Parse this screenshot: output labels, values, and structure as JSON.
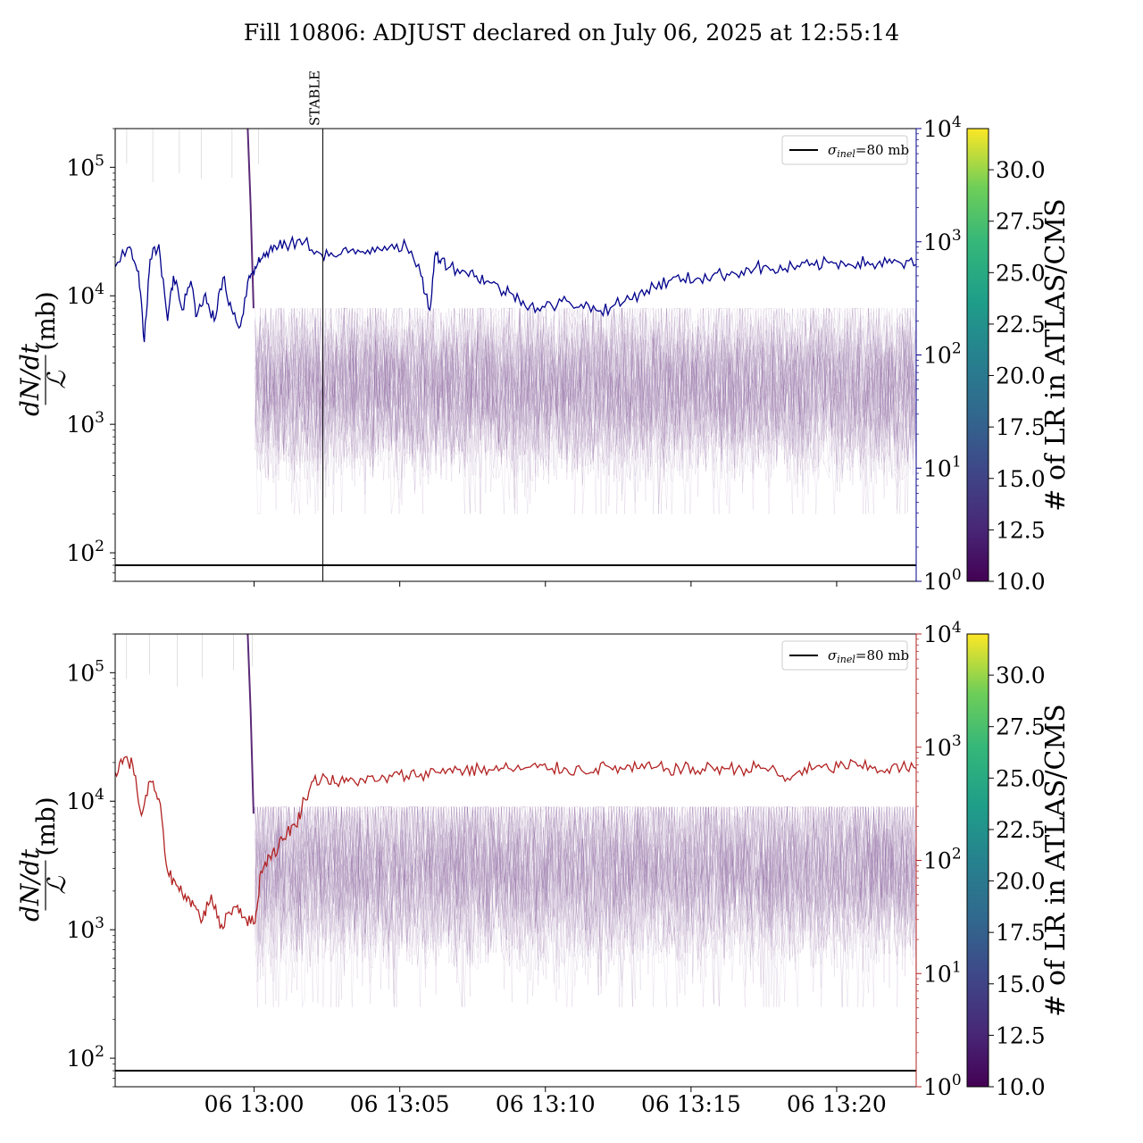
{
  "title": "Fill 10806: ADJUST declared on July 06, 2025 at 12:55:14",
  "chart_data": [
    {
      "type": "line",
      "panel": "top",
      "x_range": [
        "06 12:55:14",
        "06 13:22:45"
      ],
      "xticks": [
        "06 13:00",
        "06 13:05",
        "06 13:10",
        "06 13:15",
        "06 13:20"
      ],
      "xtick_minutes": [
        4.77,
        9.77,
        14.77,
        19.77,
        24.77
      ],
      "x_end_minutes": 27.5,
      "ylabel_num": "dN/dt",
      "ylabel_den": "ℒ",
      "ylabel_unit": "(mb)",
      "y_scale": "log",
      "ylim": [
        60,
        200000
      ],
      "yticks": [
        "10^2",
        "10^3",
        "10^4",
        "10^5"
      ],
      "yticks_values": [
        100,
        1000,
        10000,
        100000
      ],
      "y2_scale": "log",
      "y2lim": [
        1,
        10000
      ],
      "y2ticks": [
        "10^0",
        "10^1",
        "10^2",
        "10^3",
        "10^4"
      ],
      "y2_color": "#00008b",
      "hline_value": 80,
      "legend": {
        "label": "σinel=80 mb",
        "sym": "σ",
        "sub": "inel",
        "rest": "=80 mb",
        "placement": "top-right"
      },
      "vline": {
        "label": "STABLE",
        "x_minutes": 7.13
      },
      "series": [
        {
          "axis": "right",
          "color": "#00008b",
          "x_minutes": [
            0,
            0.5,
            0.8,
            1.0,
            1.2,
            1.5,
            1.8,
            2.0,
            2.3,
            2.6,
            2.8,
            3.1,
            3.4,
            3.7,
            4.0,
            4.3,
            4.6,
            4.8,
            5.0,
            5.3,
            5.6,
            6.0,
            6.5,
            7.0,
            7.5,
            8.0,
            8.5,
            9.0,
            9.5,
            10.0,
            10.5,
            10.8,
            11.0,
            11.2,
            11.5,
            12.0,
            12.4,
            12.8,
            13.2,
            13.6,
            14.0,
            14.5,
            15.0,
            15.5,
            16.0,
            16.5,
            17.0,
            17.5,
            18.0,
            18.5,
            19.0,
            19.5,
            20.0,
            20.5,
            21.0,
            21.5,
            22.0,
            22.5,
            23.0,
            23.5,
            24.0,
            24.5,
            25.0,
            25.5,
            26.0,
            26.5,
            27.0,
            27.5
          ],
          "values": [
            600,
            900,
            550,
            130,
            700,
            950,
            200,
            500,
            250,
            450,
            220,
            350,
            200,
            480,
            250,
            180,
            500,
            600,
            700,
            850,
            900,
            950,
            1000,
            800,
            750,
            800,
            820,
            900,
            950,
            900,
            500,
            250,
            800,
            700,
            600,
            550,
            500,
            450,
            380,
            350,
            300,
            260,
            270,
            300,
            280,
            250,
            260,
            300,
            350,
            400,
            450,
            470,
            480,
            500,
            520,
            550,
            600,
            560,
            580,
            600,
            620,
            650,
            650,
            660,
            640,
            650,
            640,
            630
          ]
        }
      ],
      "colorbar": {
        "label": "# of LR in ATLAS/CMS",
        "range": [
          10.0,
          32.0
        ],
        "ticks": [
          "10.0",
          "12.5",
          "15.0",
          "17.5",
          "20.0",
          "22.5",
          "25.0",
          "27.5",
          "30.0"
        ],
        "tick_values": [
          10.0,
          12.5,
          15.0,
          17.5,
          20.0,
          22.5,
          25.0,
          27.5,
          30.0
        ],
        "colormap": "viridis"
      },
      "band": {
        "center": 2000,
        "low": 400,
        "high": 8000,
        "start_minutes": 4.8
      }
    },
    {
      "type": "line",
      "panel": "bottom",
      "x_range": [
        "06 12:55:14",
        "06 13:22:45"
      ],
      "xticks": [
        "06 13:00",
        "06 13:05",
        "06 13:10",
        "06 13:15",
        "06 13:20"
      ],
      "xtick_minutes": [
        4.77,
        9.77,
        14.77,
        19.77,
        24.77
      ],
      "x_end_minutes": 27.5,
      "ylabel_num": "dN/dt",
      "ylabel_den": "ℒ",
      "ylabel_unit": "(mb)",
      "y_scale": "log",
      "ylim": [
        60,
        200000
      ],
      "yticks": [
        "10^2",
        "10^3",
        "10^4",
        "10^5"
      ],
      "yticks_values": [
        100,
        1000,
        10000,
        100000
      ],
      "y2_scale": "log",
      "y2lim": [
        1,
        10000
      ],
      "y2ticks": [
        "10^0",
        "10^1",
        "10^2",
        "10^3",
        "10^4"
      ],
      "y2_color": "#b22222",
      "hline_value": 80,
      "legend": {
        "label": "σinel=80 mb",
        "sym": "σ",
        "sub": "inel",
        "rest": "=80 mb",
        "placement": "top-right"
      },
      "series": [
        {
          "axis": "right",
          "color": "#b22222",
          "x_minutes": [
            0,
            0.3,
            0.6,
            0.9,
            1.2,
            1.5,
            1.8,
            2.1,
            2.4,
            2.7,
            3.0,
            3.3,
            3.6,
            3.9,
            4.2,
            4.5,
            4.8,
            5.0,
            5.3,
            5.6,
            5.9,
            6.2,
            6.5,
            6.8,
            7.2,
            7.6,
            8.0,
            8.5,
            9.0,
            9.5,
            10.0,
            10.5,
            11.0,
            11.5,
            12.0,
            12.5,
            13.0,
            13.5,
            14.0,
            14.5,
            15.0,
            15.5,
            16.0,
            16.5,
            17.0,
            17.5,
            18.0,
            18.5,
            19.0,
            19.5,
            20.0,
            20.5,
            21.0,
            21.5,
            22.0,
            22.5,
            23.0,
            23.5,
            24.0,
            24.5,
            25.0,
            25.5,
            26.0,
            26.5,
            27.0,
            27.5
          ],
          "values": [
            600,
            800,
            700,
            250,
            500,
            350,
            80,
            60,
            50,
            40,
            30,
            50,
            25,
            35,
            40,
            30,
            28,
            80,
            110,
            130,
            180,
            200,
            350,
            500,
            550,
            480,
            500,
            520,
            500,
            550,
            560,
            580,
            600,
            650,
            620,
            640,
            630,
            650,
            640,
            660,
            650,
            640,
            630,
            650,
            660,
            640,
            650,
            660,
            640,
            650,
            620,
            660,
            650,
            640,
            660,
            650,
            500,
            620,
            650,
            640,
            700,
            680,
            650,
            640,
            660,
            650
          ]
        }
      ],
      "colorbar": {
        "label": "# of LR in ATLAS/CMS",
        "range": [
          10.0,
          32.0
        ],
        "ticks": [
          "10.0",
          "12.5",
          "15.0",
          "17.5",
          "20.0",
          "22.5",
          "25.0",
          "27.5",
          "30.0"
        ],
        "tick_values": [
          10.0,
          12.5,
          15.0,
          17.5,
          20.0,
          22.5,
          25.0,
          27.5,
          30.0
        ],
        "colormap": "viridis"
      },
      "band": {
        "center": 3000,
        "low": 500,
        "high": 9000,
        "start_minutes": 4.8
      }
    }
  ]
}
